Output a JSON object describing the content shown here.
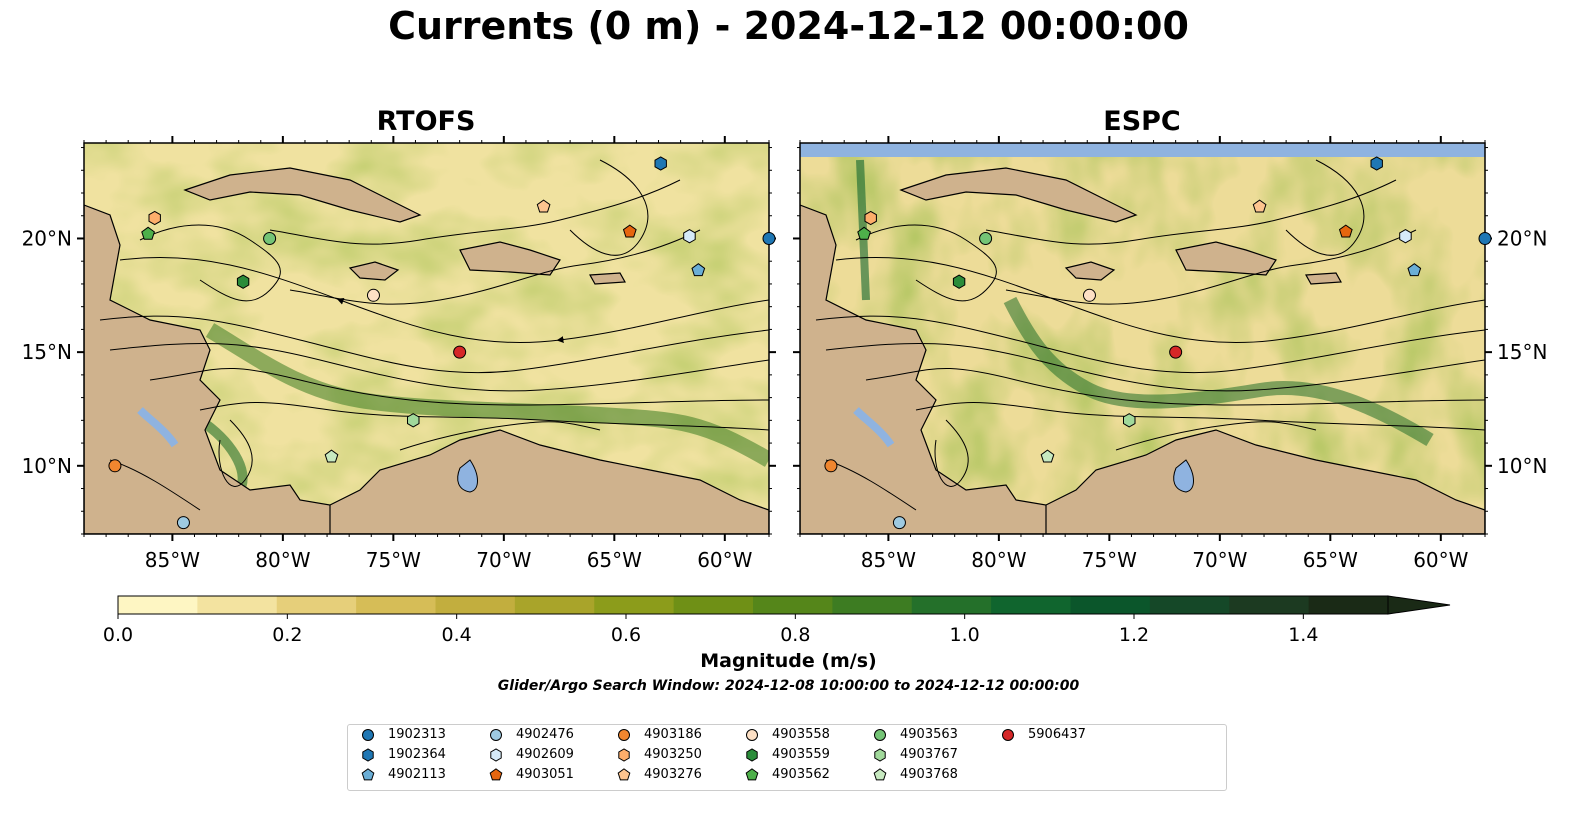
{
  "title": "Currents (0 m) - 2024-12-12 00:00:00",
  "panels": [
    {
      "name": "RTOFS"
    },
    {
      "name": "ESPC"
    }
  ],
  "map": {
    "lon_range": [
      -89,
      -58
    ],
    "lat_range": [
      7,
      24.2
    ],
    "lon_ticks": [
      -85,
      -80,
      -75,
      -70,
      -65,
      -60
    ],
    "lon_tick_labels": [
      "85°W",
      "80°W",
      "75°W",
      "70°W",
      "65°W",
      "60°W"
    ],
    "lat_ticks": [
      10,
      15,
      20
    ],
    "lat_tick_labels": [
      "10°N",
      "15°N",
      "20°N"
    ],
    "land_color": "#cfb28d",
    "water_color": "#8fb3e0"
  },
  "colorbar": {
    "label": "Magnitude (m/s)",
    "min": 0.0,
    "max": 1.5,
    "extend": "max",
    "tick_values": [
      0.0,
      0.2,
      0.4,
      0.6,
      0.8,
      1.0,
      1.2,
      1.4
    ],
    "tick_labels": [
      "0.0",
      "0.2",
      "0.4",
      "0.6",
      "0.8",
      "1.0",
      "1.2",
      "1.4"
    ],
    "colors": [
      "#fef6c3",
      "#f3e3a0",
      "#e6cf7a",
      "#d6bd57",
      "#c2ae3e",
      "#a9a42a",
      "#8c9c1b",
      "#6f9016",
      "#55861a",
      "#3d7c22",
      "#24702a",
      "#10652e",
      "#0b562b",
      "#154828",
      "#1c3a21",
      "#1a2a16"
    ]
  },
  "search_window": "Glider/Argo Search Window: 2024-12-08 10:00:00 to 2024-12-12 00:00:00",
  "floats": [
    {
      "id": "1902313",
      "marker": "circle",
      "color": "#1f77b4",
      "lon": -58.0,
      "lat": 20.0
    },
    {
      "id": "1902364",
      "marker": "hexagon",
      "color": "#1f77b4",
      "lon": -62.9,
      "lat": 23.3
    },
    {
      "id": "4902113",
      "marker": "pentagon",
      "color": "#6aaed6",
      "lon": -61.2,
      "lat": 18.6
    },
    {
      "id": "4902476",
      "marker": "circle",
      "color": "#9ecae1",
      "lon": -84.5,
      "lat": 7.5
    },
    {
      "id": "4902609",
      "marker": "hexagon",
      "color": "#d6eaf8",
      "lon": -61.6,
      "lat": 20.1
    },
    {
      "id": "4903051",
      "marker": "pentagon",
      "color": "#e6660f",
      "lon": -64.3,
      "lat": 20.3
    },
    {
      "id": "4903186",
      "marker": "circle",
      "color": "#f0862f",
      "lon": -87.6,
      "lat": 10.0
    },
    {
      "id": "4903250",
      "marker": "hexagon",
      "color": "#fdae6b",
      "lon": -85.8,
      "lat": 20.9
    },
    {
      "id": "4903276",
      "marker": "pentagon",
      "color": "#fdc48f",
      "lon": -68.2,
      "lat": 21.4
    },
    {
      "id": "4903558",
      "marker": "circle",
      "color": "#fde0c5",
      "lon": -75.9,
      "lat": 17.5
    },
    {
      "id": "4903559",
      "marker": "hexagon",
      "color": "#2b8c3a",
      "lon": -81.8,
      "lat": 18.1
    },
    {
      "id": "4903562",
      "marker": "pentagon",
      "color": "#4eb04a",
      "lon": -86.1,
      "lat": 20.2
    },
    {
      "id": "4903563",
      "marker": "circle",
      "color": "#74c476",
      "lon": -80.6,
      "lat": 20.0
    },
    {
      "id": "4903767",
      "marker": "hexagon",
      "color": "#a1d99b",
      "lon": -74.1,
      "lat": 12.0
    },
    {
      "id": "4903768",
      "marker": "pentagon",
      "color": "#c7e9c0",
      "lon": -77.8,
      "lat": 10.4
    },
    {
      "id": "5906437",
      "marker": "circle",
      "color": "#d62728",
      "lon": -72.0,
      "lat": 15.0
    }
  ]
}
